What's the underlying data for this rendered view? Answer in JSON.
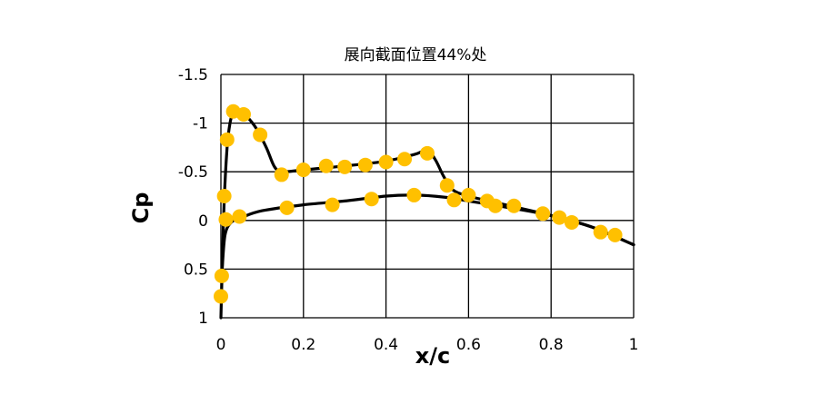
{
  "chart_data": {
    "type": "scatter",
    "title": "展向截面位置44%处",
    "xlabel": "x/c",
    "ylabel": "Cp",
    "xlim": [
      0,
      1
    ],
    "ylim": [
      -1.5,
      1
    ],
    "y_inverted": true,
    "grid": true,
    "legend": "none",
    "x_ticks": [
      "0",
      "0.2",
      "0.4",
      "0.6",
      "0.8",
      "1"
    ],
    "y_ticks": [
      "-1.5",
      "-1",
      "-0.5",
      "0",
      "0.5",
      "1"
    ],
    "colors": {
      "points": "#FFC000",
      "curve": "#000000",
      "grid": "#000000"
    },
    "series": [
      {
        "type": "scatter",
        "points": [
          [
            0.0,
            0.78
          ],
          [
            0.002,
            0.57
          ],
          [
            0.008,
            -0.25
          ],
          [
            0.012,
            -0.01
          ],
          [
            0.015,
            -0.83
          ],
          [
            0.03,
            -1.12
          ],
          [
            0.055,
            -1.09
          ],
          [
            0.095,
            -0.88
          ],
          [
            0.147,
            -0.47
          ],
          [
            0.2,
            -0.52
          ],
          [
            0.255,
            -0.56
          ],
          [
            0.3,
            -0.55
          ],
          [
            0.35,
            -0.57
          ],
          [
            0.4,
            -0.6
          ],
          [
            0.445,
            -0.63
          ],
          [
            0.5,
            -0.69
          ],
          [
            0.548,
            -0.36
          ],
          [
            0.6,
            -0.26
          ],
          [
            0.645,
            -0.2
          ],
          [
            0.665,
            -0.15
          ],
          [
            0.71,
            -0.15
          ],
          [
            0.78,
            -0.07
          ],
          [
            0.82,
            -0.03
          ],
          [
            0.85,
            0.02
          ],
          [
            0.92,
            0.12
          ],
          [
            0.955,
            0.15
          ],
          [
            0.045,
            -0.04
          ],
          [
            0.16,
            -0.13
          ],
          [
            0.27,
            -0.16
          ],
          [
            0.365,
            -0.22
          ],
          [
            0.468,
            -0.26
          ],
          [
            0.565,
            -0.21
          ]
        ]
      },
      {
        "type": "line",
        "points": [
          [
            0.0,
            1.0
          ],
          [
            0.003,
            0.5
          ],
          [
            0.008,
            -0.2
          ],
          [
            0.015,
            -0.75
          ],
          [
            0.022,
            -1.0
          ],
          [
            0.03,
            -1.1
          ],
          [
            0.045,
            -1.12
          ],
          [
            0.06,
            -1.08
          ],
          [
            0.085,
            -0.95
          ],
          [
            0.11,
            -0.75
          ],
          [
            0.13,
            -0.55
          ],
          [
            0.15,
            -0.5
          ],
          [
            0.2,
            -0.52
          ],
          [
            0.3,
            -0.56
          ],
          [
            0.4,
            -0.61
          ],
          [
            0.47,
            -0.68
          ],
          [
            0.5,
            -0.72
          ],
          [
            0.52,
            -0.62
          ],
          [
            0.54,
            -0.45
          ],
          [
            0.56,
            -0.32
          ],
          [
            0.6,
            -0.25
          ],
          [
            0.7,
            -0.15
          ],
          [
            0.8,
            -0.05
          ],
          [
            0.9,
            0.07
          ],
          [
            1.0,
            0.25
          ]
        ]
      },
      {
        "type": "line",
        "points": [
          [
            0.003,
            0.5
          ],
          [
            0.01,
            0.15
          ],
          [
            0.025,
            0.02
          ],
          [
            0.05,
            -0.03
          ],
          [
            0.1,
            -0.1
          ],
          [
            0.2,
            -0.16
          ],
          [
            0.3,
            -0.2
          ],
          [
            0.4,
            -0.25
          ],
          [
            0.47,
            -0.26
          ],
          [
            0.54,
            -0.24
          ],
          [
            0.6,
            -0.2
          ],
          [
            0.7,
            -0.13
          ],
          [
            0.8,
            -0.05
          ],
          [
            0.9,
            0.07
          ],
          [
            1.0,
            0.25
          ]
        ]
      }
    ]
  }
}
